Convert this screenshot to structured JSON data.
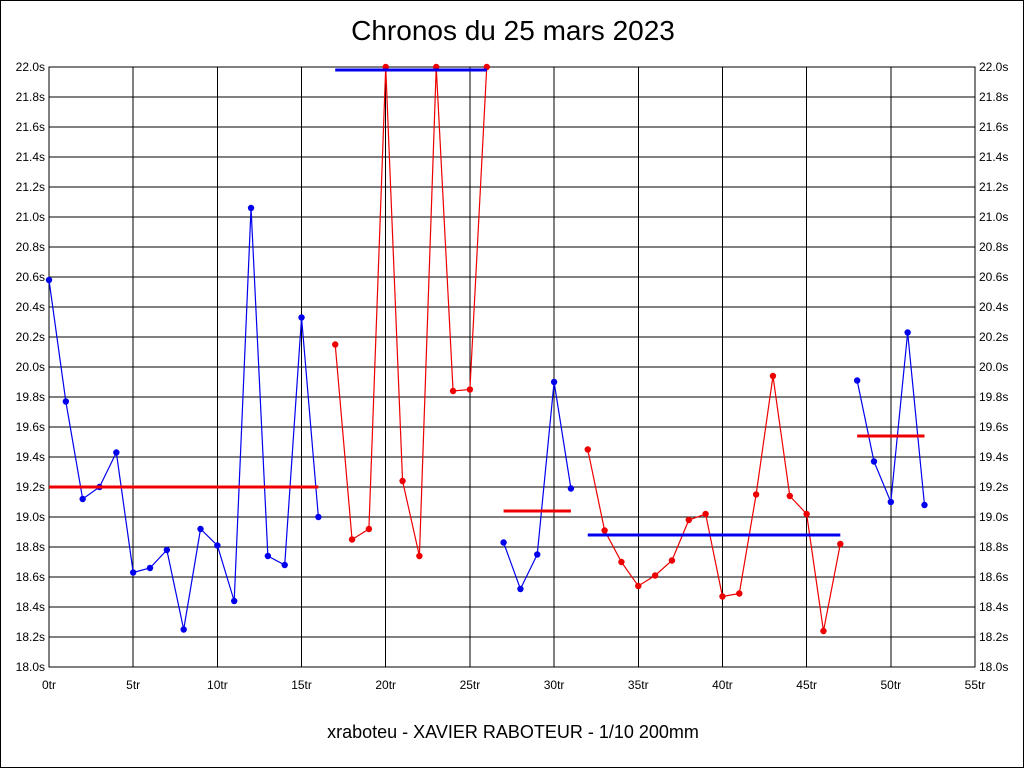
{
  "chart_data": {
    "type": "line",
    "title": "Chronos du 25 mars 2023",
    "caption": "xraboteu - XAVIER RABOTEUR - 1/10 200mm",
    "xlabel": "",
    "ylabel": "",
    "xlim": [
      0,
      55
    ],
    "ylim": [
      18.0,
      22.0
    ],
    "x_ticks": [
      0,
      5,
      10,
      15,
      20,
      25,
      30,
      35,
      40,
      45,
      50,
      55
    ],
    "x_tick_labels": [
      "0tr",
      "5tr",
      "10tr",
      "15tr",
      "20tr",
      "25tr",
      "30tr",
      "35tr",
      "40tr",
      "45tr",
      "50tr",
      "55tr"
    ],
    "y_ticks": [
      18.0,
      18.2,
      18.4,
      18.6,
      18.8,
      19.0,
      19.2,
      19.4,
      19.6,
      19.8,
      20.0,
      20.2,
      20.4,
      20.6,
      20.8,
      21.0,
      21.2,
      21.4,
      21.6,
      21.8,
      22.0
    ],
    "y_tick_labels": [
      "18.0s",
      "18.2s",
      "18.4s",
      "18.6s",
      "18.8s",
      "19.0s",
      "19.2s",
      "19.4s",
      "19.6s",
      "19.8s",
      "20.0s",
      "20.2s",
      "20.4s",
      "20.6s",
      "20.8s",
      "21.0s",
      "21.2s",
      "21.4s",
      "21.6s",
      "21.8s",
      "22.0s"
    ],
    "grid": true,
    "legend": "none",
    "y_axis_both_sides": true,
    "series": [
      {
        "color": "#0000ee",
        "points": [
          [
            0,
            20.58
          ],
          [
            1,
            19.77
          ],
          [
            2,
            19.12
          ],
          [
            3,
            19.2
          ],
          [
            4,
            19.43
          ],
          [
            5,
            18.63
          ],
          [
            6,
            18.66
          ],
          [
            7,
            18.78
          ],
          [
            8,
            18.25
          ],
          [
            9,
            18.92
          ],
          [
            10,
            18.81
          ],
          [
            11,
            18.44
          ],
          [
            12,
            21.06
          ],
          [
            13,
            18.74
          ],
          [
            14,
            18.68
          ],
          [
            15,
            20.33
          ],
          [
            16,
            19.0
          ]
        ],
        "mean": 19.2,
        "mean_range": [
          0,
          16
        ]
      },
      {
        "color": "#ee0000",
        "points": [
          [
            17,
            20.15
          ],
          [
            18,
            18.85
          ],
          [
            19,
            18.92
          ],
          [
            20,
            22.0
          ],
          [
            21,
            19.24
          ],
          [
            22,
            18.74
          ],
          [
            23,
            22.0
          ],
          [
            24,
            19.84
          ],
          [
            25,
            19.85
          ],
          [
            26,
            22.0
          ]
        ],
        "mean": 21.98,
        "mean_range": [
          17,
          26
        ],
        "mean_color": "#0000ee"
      },
      {
        "color": "#0000ee",
        "points": [
          [
            27,
            18.83
          ],
          [
            28,
            18.52
          ],
          [
            29,
            18.75
          ],
          [
            30,
            19.9
          ],
          [
            31,
            19.19
          ]
        ],
        "mean": 19.04,
        "mean_range": [
          27,
          31
        ],
        "mean_color": "#ee0000"
      },
      {
        "color": "#ee0000",
        "points": [
          [
            32,
            19.45
          ],
          [
            33,
            18.91
          ],
          [
            34,
            18.7
          ],
          [
            35,
            18.54
          ],
          [
            36,
            18.61
          ],
          [
            37,
            18.71
          ],
          [
            38,
            18.98
          ],
          [
            39,
            19.02
          ],
          [
            40,
            18.47
          ],
          [
            41,
            18.49
          ],
          [
            42,
            19.15
          ],
          [
            43,
            19.94
          ],
          [
            44,
            19.14
          ],
          [
            45,
            19.02
          ],
          [
            46,
            18.24
          ],
          [
            47,
            18.82
          ]
        ],
        "mean": 18.88,
        "mean_range": [
          32,
          47
        ],
        "mean_color": "#0000ee"
      },
      {
        "color": "#0000ee",
        "points": [
          [
            48,
            19.91
          ],
          [
            49,
            19.37
          ],
          [
            50,
            19.1
          ],
          [
            51,
            20.23
          ],
          [
            52,
            19.08
          ]
        ],
        "mean": 19.54,
        "mean_range": [
          48,
          52
        ],
        "mean_color": "#ee0000"
      }
    ]
  }
}
